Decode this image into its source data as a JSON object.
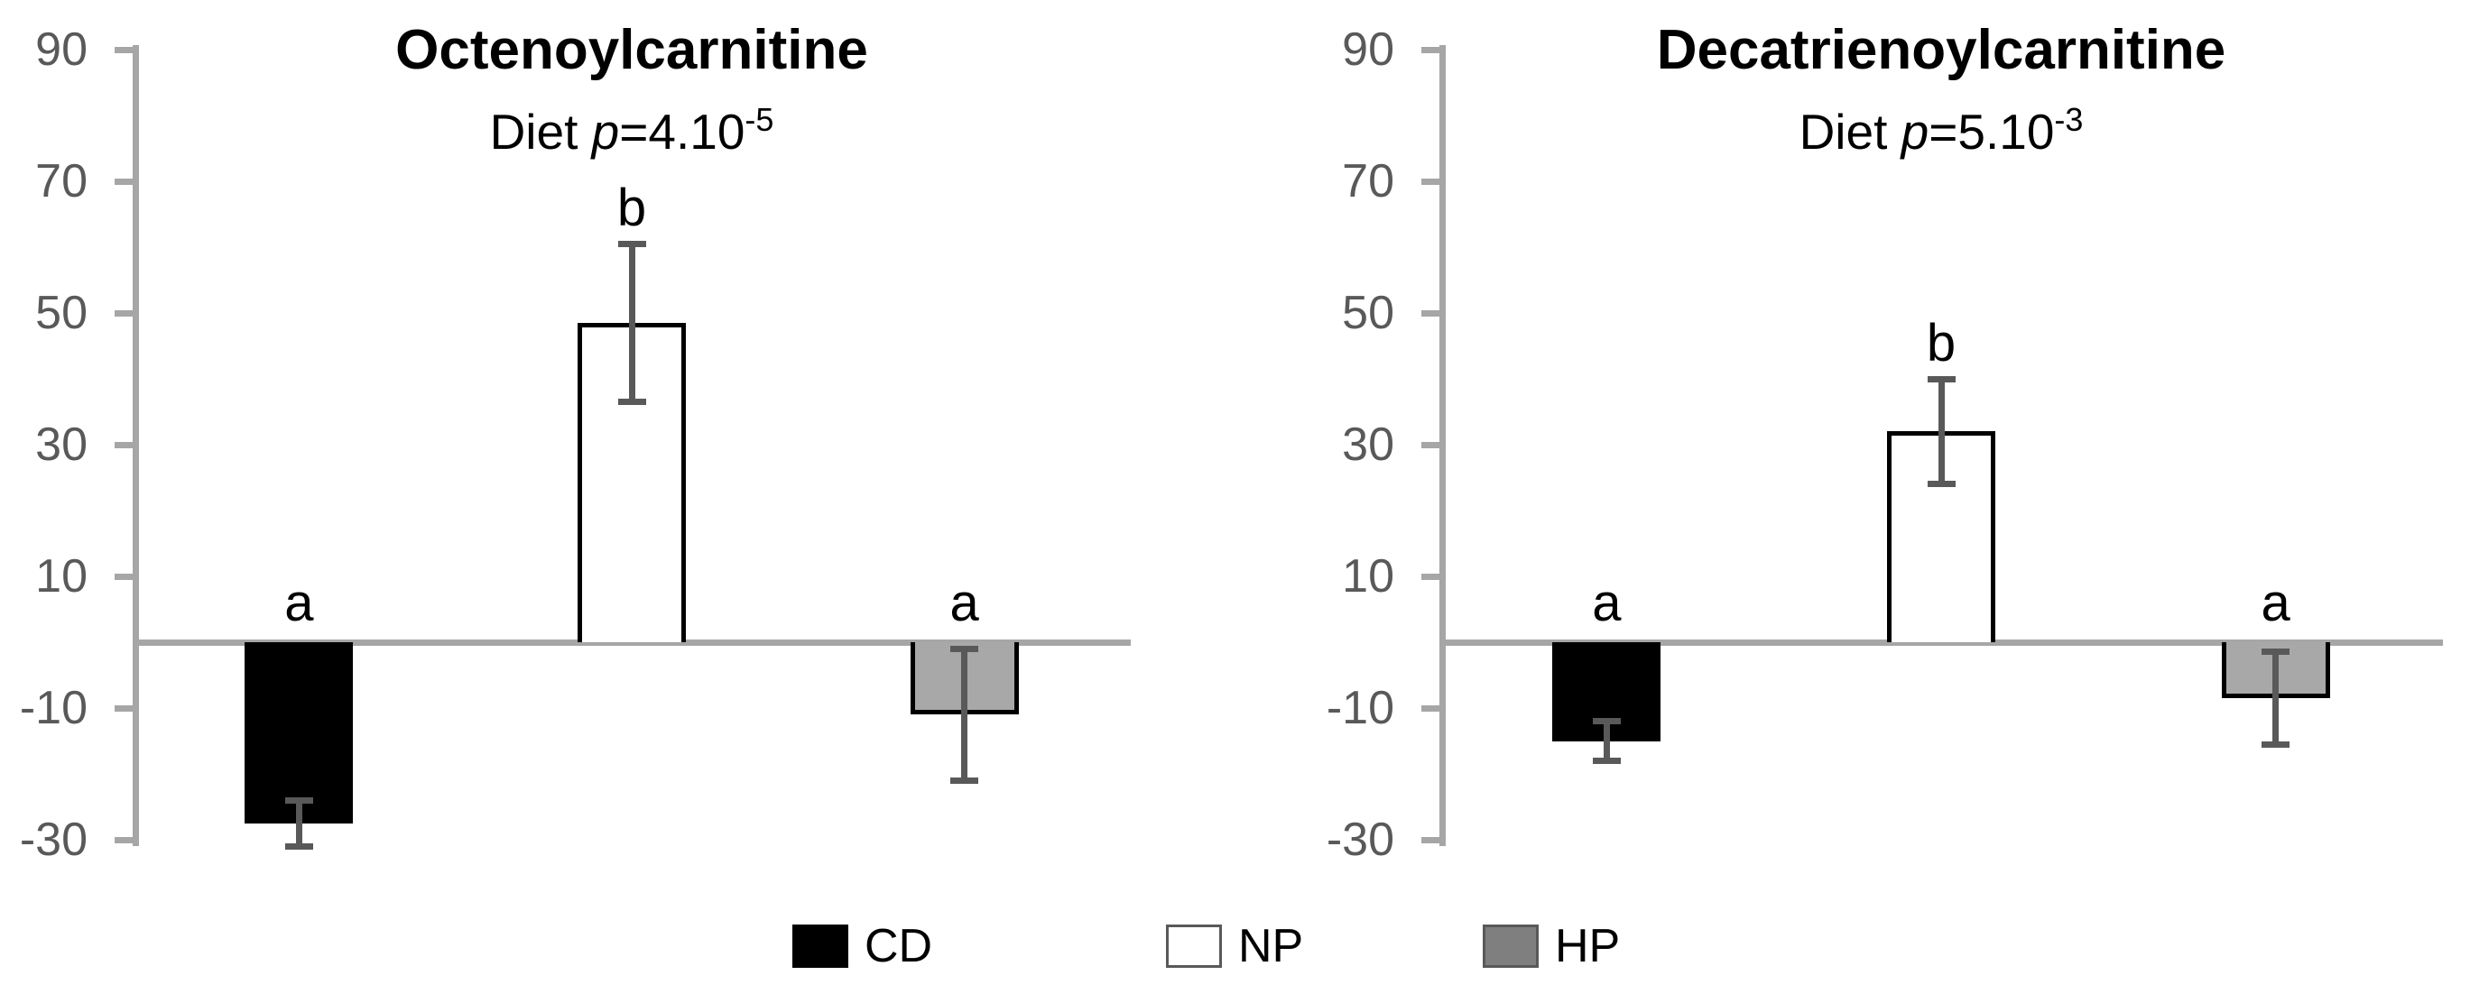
{
  "style": {
    "background": "#ffffff",
    "axis_color": "#a6a6a6",
    "error_bar_color": "#595959",
    "tick_label_color": "#595959",
    "title_color": "#000000",
    "letter_color": "#000000"
  },
  "figure": {
    "legend": [
      {
        "label": "CD",
        "swatch_fill": "#000000",
        "swatch_border": "#000000"
      },
      {
        "label": "NP",
        "swatch_fill": "#ffffff",
        "swatch_border": "#595959"
      },
      {
        "label": "HP",
        "swatch_fill": "#7f7f7f",
        "swatch_border": "#595959"
      }
    ]
  },
  "chart_data": [
    {
      "type": "bar",
      "title": "Octenoylcarnitine",
      "subtitle": {
        "prefix": "Diet ",
        "p_symbol": "p",
        "body": "=4.10",
        "exponent": "-5"
      },
      "categories": [
        "CD",
        "NP",
        "HP"
      ],
      "values": [
        -27.5,
        48.5,
        -11
      ],
      "errors": [
        3.5,
        12,
        10
      ],
      "sig_letters": [
        "a",
        "b",
        "a"
      ],
      "bar_fills": [
        "#000000",
        "#ffffff",
        "#a8a8a8"
      ],
      "bar_borders": [
        "#000000",
        "#000000",
        "#000000"
      ],
      "ylim": [
        -30,
        90
      ],
      "yticks": [
        90,
        70,
        50,
        30,
        10,
        -10,
        -30
      ],
      "grid": false,
      "legend_position": "bottom"
    },
    {
      "type": "bar",
      "title": "Decatrienoylcarnitine",
      "subtitle": {
        "prefix": "Diet ",
        "p_symbol": "p",
        "body": "=5.10",
        "exponent": "-3"
      },
      "categories": [
        "CD",
        "NP",
        "HP"
      ],
      "values": [
        -15,
        32,
        -8.5
      ],
      "errors": [
        3,
        8,
        7
      ],
      "sig_letters": [
        "a",
        "b",
        "a"
      ],
      "bar_fills": [
        "#000000",
        "#ffffff",
        "#a8a8a8"
      ],
      "bar_borders": [
        "#000000",
        "#000000",
        "#000000"
      ],
      "ylim": [
        -30,
        90
      ],
      "yticks": [
        90,
        70,
        50,
        30,
        10,
        -10,
        -30
      ],
      "grid": false,
      "legend_position": "bottom"
    }
  ]
}
